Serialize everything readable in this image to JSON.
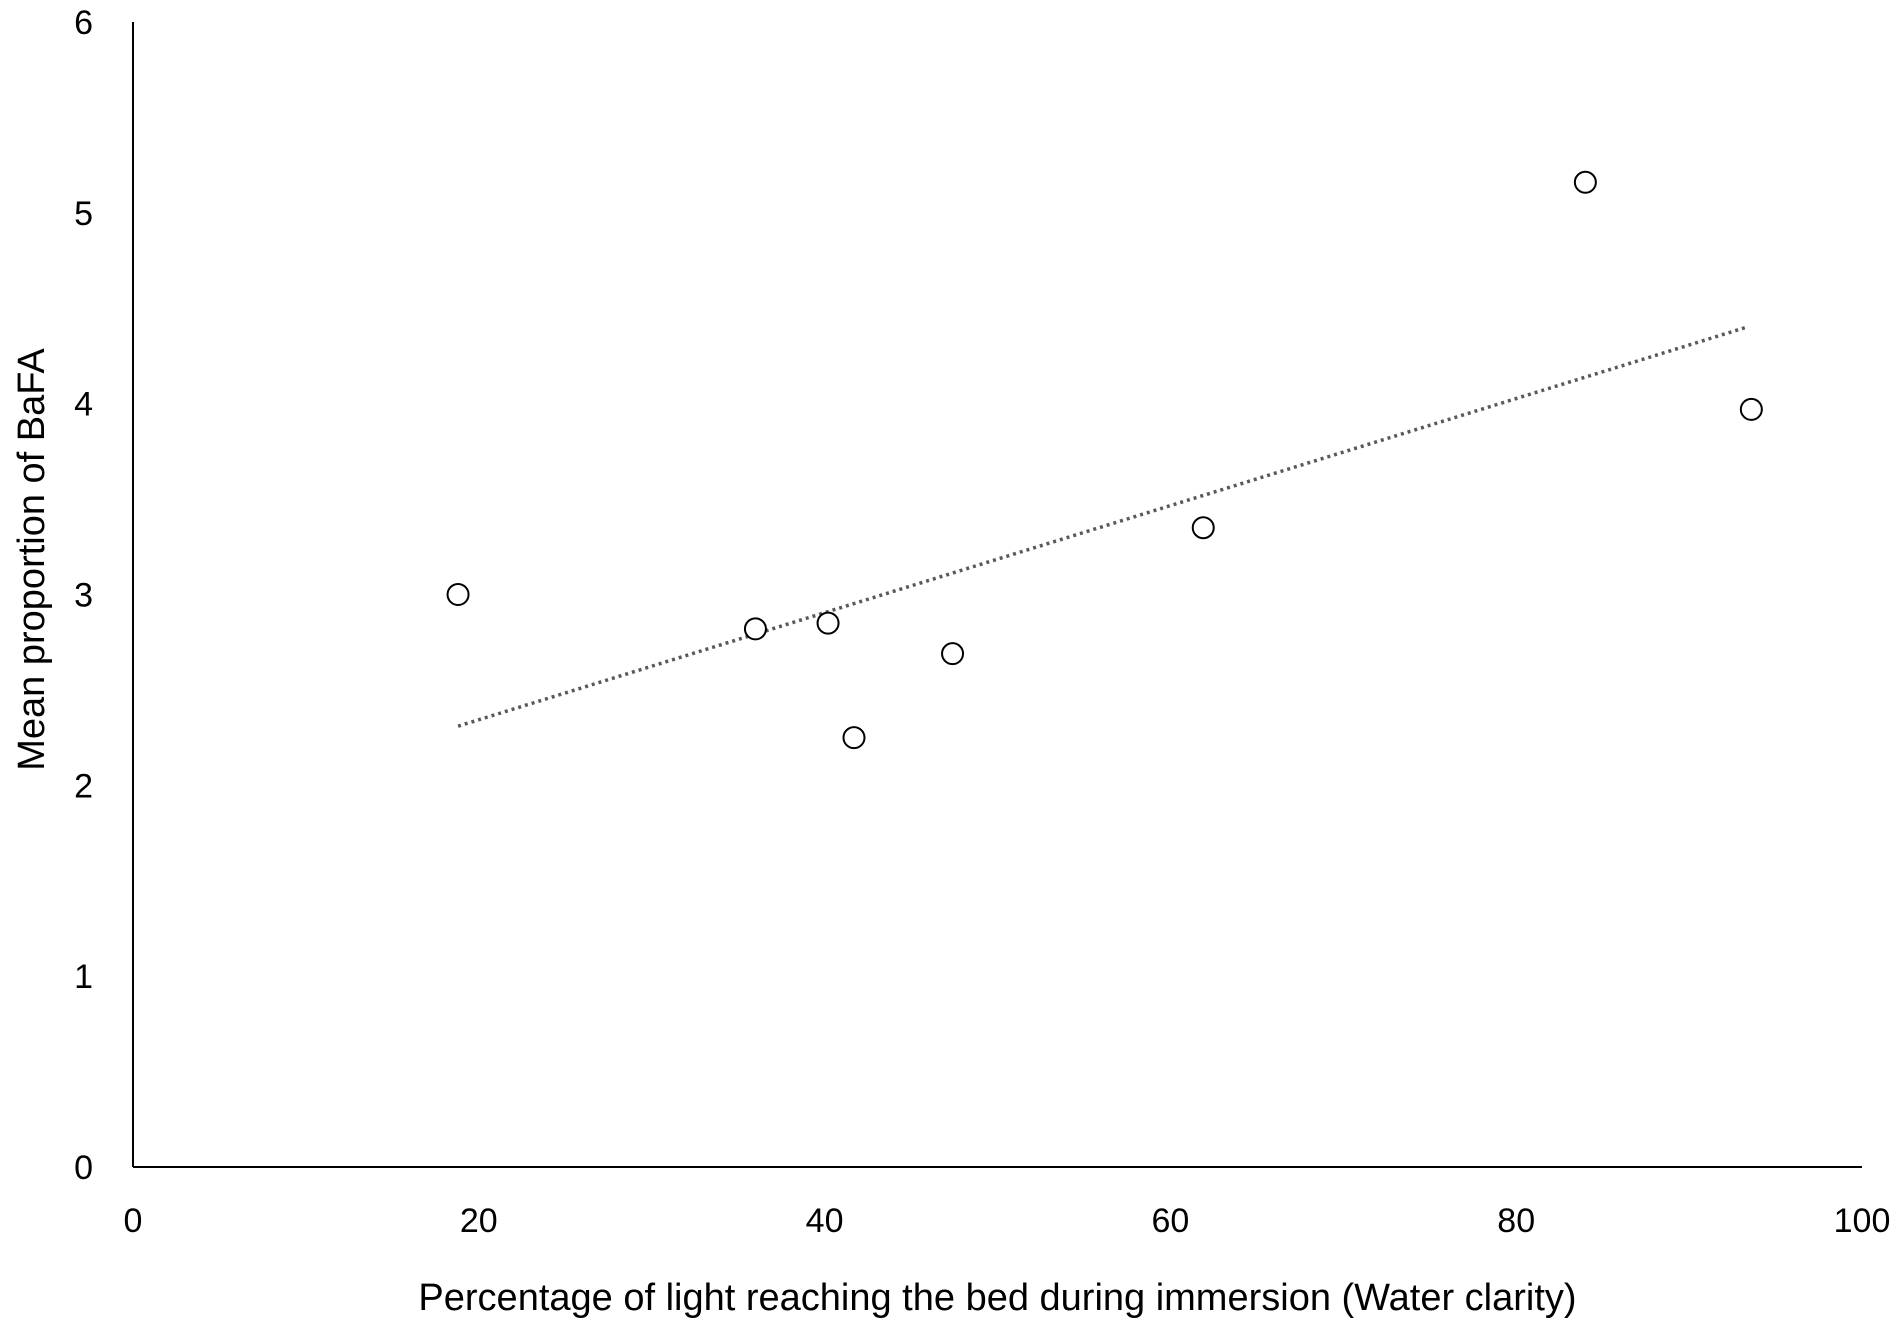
{
  "chart_data": {
    "type": "scatter",
    "title": "",
    "xlabel": "Percentage of light reaching the bed during immersion (Water clarity)",
    "ylabel": "Mean proportion of BaFA",
    "xlim": [
      0,
      100
    ],
    "ylim": [
      0,
      6
    ],
    "x_ticks": [
      0,
      20,
      40,
      60,
      80,
      100
    ],
    "y_ticks": [
      0,
      1,
      2,
      3,
      4,
      5,
      6
    ],
    "x_tick_labels": [
      "0",
      "20",
      "40",
      "60",
      "80",
      "100"
    ],
    "y_tick_labels": [
      "0",
      "1",
      "2",
      "3",
      "4",
      "5",
      "6"
    ],
    "grid": false,
    "legend": "none",
    "points": [
      {
        "x": 18.8,
        "y": 3.0
      },
      {
        "x": 36.0,
        "y": 2.82
      },
      {
        "x": 40.2,
        "y": 2.85
      },
      {
        "x": 41.7,
        "y": 2.25
      },
      {
        "x": 47.4,
        "y": 2.69
      },
      {
        "x": 61.9,
        "y": 3.35
      },
      {
        "x": 84.0,
        "y": 5.16
      },
      {
        "x": 93.6,
        "y": 3.97
      }
    ],
    "trendline": {
      "style": "dotted",
      "from": {
        "x": 18.8,
        "y": 2.31
      },
      "to": {
        "x": 93.3,
        "y": 4.4
      }
    },
    "colors": {
      "axis": "#000000",
      "marker_stroke": "#000000",
      "marker_fill": "#ffffff",
      "trendline": "#595959"
    }
  }
}
